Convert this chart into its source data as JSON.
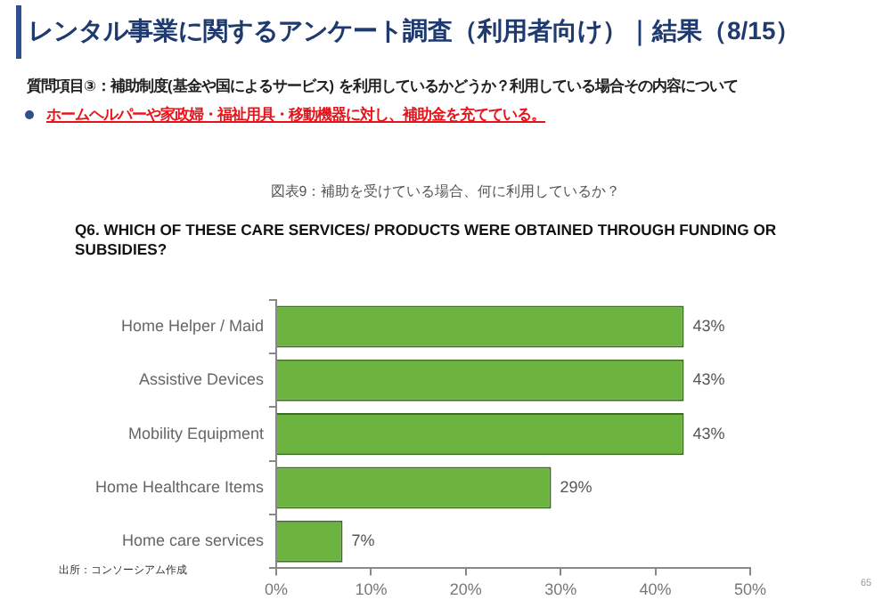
{
  "chart_data": {
    "type": "bar",
    "orientation": "horizontal",
    "title": "レンタル事業に関するアンケート調査（利用者向け）｜結果（8/15）",
    "subtitle": "質問項目③：補助制度(基金や国によるサービス) を利用しているかどうか？利用している場合その内容について",
    "annotations": [
      "ホームヘルパーや家政婦・福祉用具・移動機器に対し、補助金を充てている。",
      "図表9：補助を受けている場合、何に利用しているか？",
      "出所：コンソーシアム作成",
      "65"
    ],
    "xlabel": "Q6. WHICH OF THESE CARE SERVICES/ PRODUCTS WERE OBTAINED THROUGH FUNDING OR SUBSIDIES?",
    "categories": [
      "Home Helper / Maid",
      "Assistive Devices",
      "Mobility Equipment",
      "Home Healthcare Items",
      "Home care services"
    ],
    "values": [
      43,
      43,
      43,
      29,
      7
    ],
    "value_labels": [
      "43%",
      "43%",
      "43%",
      "29%",
      "7%"
    ],
    "color": "#6cb33f",
    "xlim": [
      0,
      50
    ],
    "xticks": [
      {
        "value": 0,
        "label": "0%"
      },
      {
        "value": 10,
        "label": "10%"
      },
      {
        "value": 20,
        "label": "20%"
      },
      {
        "value": 30,
        "label": "30%"
      },
      {
        "value": 40,
        "label": "40%"
      },
      {
        "value": 50,
        "label": "50%"
      }
    ],
    "grid": false
  }
}
